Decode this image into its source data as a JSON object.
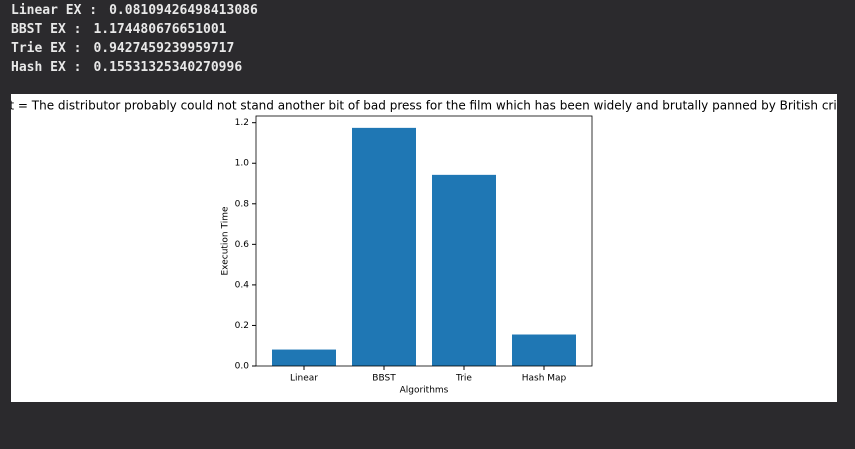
{
  "output_lines": [
    {
      "label": "Linear EX :",
      "value": "0.08109426498413086"
    },
    {
      "label": "BBST EX :",
      "value": "1.174480676651001"
    },
    {
      "label": "Trie EX :",
      "value": "0.9427459239959717"
    },
    {
      "label": "Hash EX :",
      "value": "0.15531325340270996"
    }
  ],
  "chart_data": {
    "type": "bar",
    "title": "text = The distributor probably could not stand another bit of bad press for the film which has been widely and brutally panned by British critics",
    "x_label": "Algorithms",
    "y_label": "Execution Time",
    "categories": [
      "Linear",
      "BBST",
      "Trie",
      "Hash Map"
    ],
    "values": [
      0.08109426498413086,
      1.174480676651001,
      0.9427459239959717,
      0.15531325340270996
    ],
    "color": "#1f77b4",
    "ylim": [
      0,
      1.233
    ],
    "yticks": [
      {
        "value": 0,
        "label": "0.0"
      },
      0.2,
      0.4,
      0.6,
      0.8,
      {
        "value": 1,
        "label": "1.0"
      },
      1.2
    ]
  }
}
